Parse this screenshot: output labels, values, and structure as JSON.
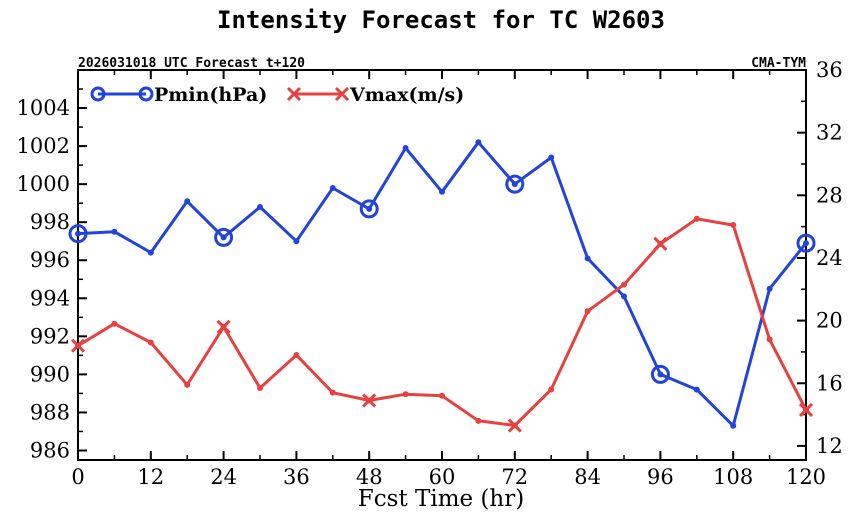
{
  "chart_data": {
    "type": "line",
    "title": "Intensity Forecast for TC W2603",
    "subtitle_left": "2026031018 UTC Forecast t+120",
    "subtitle_right": "CMA-TYM",
    "xlabel": "Fcst Time (hr)",
    "xlim": [
      0,
      120
    ],
    "xticks": [
      0,
      12,
      24,
      36,
      48,
      60,
      72,
      84,
      96,
      108,
      120
    ],
    "x": [
      0,
      6,
      12,
      18,
      24,
      30,
      36,
      42,
      48,
      54,
      60,
      66,
      72,
      78,
      84,
      90,
      96,
      102,
      108,
      114,
      120
    ],
    "marker_x": [
      0,
      24,
      48,
      72,
      96,
      120
    ],
    "left_axis": {
      "ylim": [
        985.5,
        1006
      ],
      "yticks": [
        986,
        988,
        990,
        992,
        994,
        996,
        998,
        1000,
        1002,
        1004
      ]
    },
    "right_axis": {
      "ylim": [
        11.1,
        36
      ],
      "yticks": [
        12,
        16,
        20,
        24,
        28,
        32,
        36
      ]
    },
    "legend_position": "top-left",
    "series": [
      {
        "name": "Pmin(hPa)",
        "axis": "left",
        "color": "#2244dd",
        "marker": "circle",
        "values": [
          997.4,
          997.5,
          996.4,
          999.1,
          997.2,
          998.8,
          997.0,
          999.8,
          998.7,
          1001.9,
          999.6,
          1002.2,
          1000.0,
          1001.4,
          996.1,
          994.1,
          990.0,
          989.2,
          987.3,
          994.5,
          996.9
        ]
      },
      {
        "name": "Vmax(m/s)",
        "axis": "right",
        "color": "#e84040",
        "marker": "x",
        "values": [
          18.4,
          19.8,
          18.6,
          15.9,
          19.6,
          15.7,
          17.8,
          15.4,
          14.9,
          15.3,
          15.2,
          13.6,
          13.3,
          15.6,
          20.6,
          22.3,
          24.9,
          26.5,
          26.1,
          18.8,
          14.3
        ]
      }
    ]
  }
}
